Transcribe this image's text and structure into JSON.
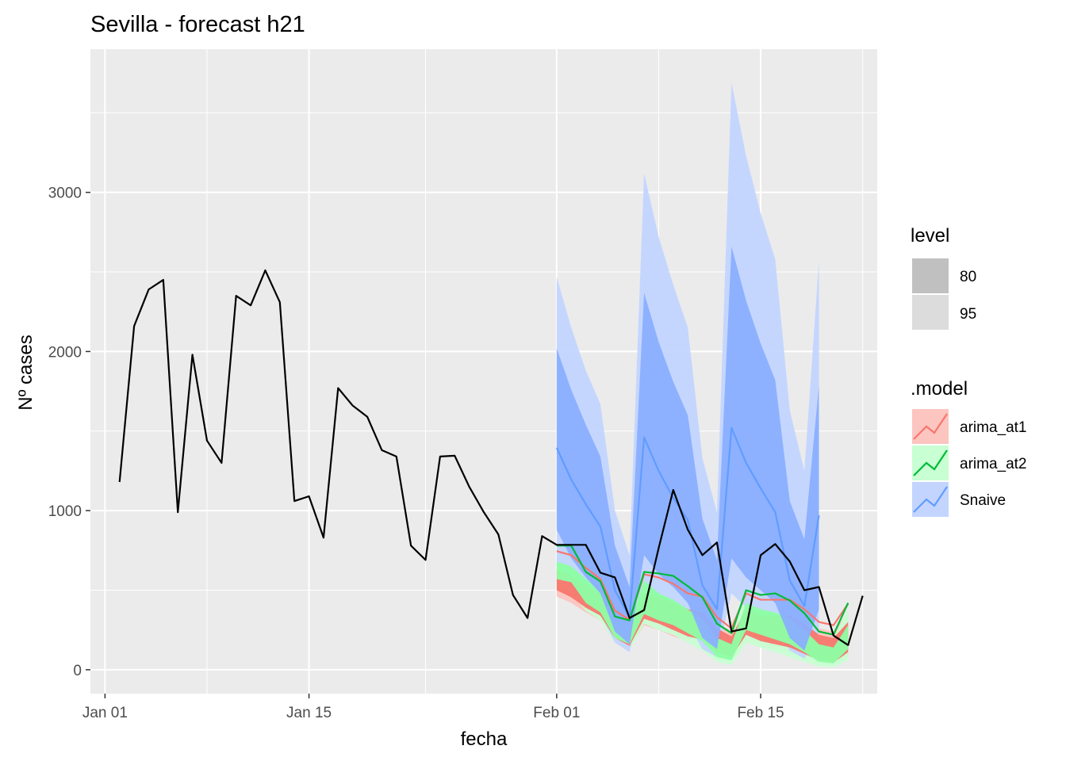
{
  "chart_data": {
    "type": "line",
    "title": "Sevilla - forecast h21",
    "xlabel": "fecha",
    "ylabel": "Nº cases",
    "xlim": [
      "2021-12-31",
      "2022-02-23"
    ],
    "ylim": [
      -150,
      3900
    ],
    "x_ticks": [
      {
        "date": "2022-01-01",
        "label": "Jan 01"
      },
      {
        "date": "2022-01-15",
        "label": "Jan 15"
      },
      {
        "date": "2022-02-01",
        "label": "Feb 01"
      },
      {
        "date": "2022-02-15",
        "label": "Feb 15"
      }
    ],
    "x_minor_ticks": [
      "2022-01-08",
      "2022-01-23",
      "2022-02-08",
      "2022-02-22"
    ],
    "y_ticks": [
      0,
      1000,
      2000,
      3000
    ],
    "y_minor_ticks": [
      500,
      1500,
      2500,
      3500
    ],
    "grid": true,
    "legend_position": "right",
    "legend": {
      "level": {
        "title": "level",
        "items": [
          "80",
          "95"
        ]
      },
      "model": {
        "title": ".model",
        "items": [
          "arima_at1",
          "arima_at2",
          "Snaive"
        ]
      }
    },
    "observed": {
      "start": "2022-01-02",
      "values": [
        1180,
        2160,
        2390,
        2450,
        990,
        1980,
        1440,
        1300,
        2350,
        2290,
        2510,
        2310,
        1060,
        1090,
        830,
        1770,
        1660,
        1590,
        1380,
        1340,
        780,
        690,
        1340,
        1345,
        1150,
        990,
        850,
        470,
        325,
        840,
        785,
        785,
        785,
        610,
        580,
        325,
        375,
        765,
        1130,
        880,
        720,
        800,
        240,
        260,
        720,
        790,
        680,
        500,
        520,
        215,
        155,
        465
      ]
    },
    "forecast": {
      "start": "2022-02-01",
      "series": [
        {
          "name": "arima_at1",
          "color": "#F8766D",
          "fill80": "#F8766D",
          "fill95": "#FCC5C0",
          "mean": [
            745,
            720,
            640,
            570,
            370,
            315,
            600,
            580,
            540,
            480,
            460,
            330,
            260,
            480,
            440,
            440,
            440,
            380,
            300,
            280,
            415
          ],
          "lo80": [
            500,
            455,
            390,
            340,
            200,
            150,
            320,
            290,
            250,
            210,
            190,
            110,
            80,
            220,
            180,
            160,
            140,
            100,
            60,
            45,
            110
          ],
          "hi80": [
            630,
            590,
            530,
            480,
            300,
            250,
            480,
            460,
            420,
            380,
            360,
            260,
            210,
            380,
            340,
            340,
            340,
            290,
            220,
            200,
            300
          ],
          "lo95": [
            460,
            420,
            360,
            310,
            180,
            130,
            280,
            250,
            210,
            180,
            160,
            90,
            60,
            180,
            150,
            130,
            110,
            80,
            50,
            35,
            80
          ],
          "hi95": [
            700,
            660,
            590,
            530,
            340,
            290,
            540,
            520,
            480,
            430,
            410,
            300,
            240,
            430,
            390,
            390,
            390,
            330,
            260,
            240,
            360
          ]
        },
        {
          "name": "arima_at2",
          "color": "#00BA38",
          "fill80": "#8CFFA3",
          "fill95": "#C8FFD3",
          "mean": [
            780,
            780,
            615,
            555,
            335,
            310,
            615,
            605,
            590,
            525,
            455,
            290,
            230,
            500,
            470,
            480,
            435,
            355,
            240,
            220,
            420
          ],
          "lo80": [
            570,
            550,
            420,
            360,
            200,
            160,
            350,
            310,
            280,
            230,
            180,
            80,
            60,
            250,
            220,
            190,
            160,
            110,
            50,
            40,
            130
          ],
          "hi80": [
            680,
            650,
            570,
            500,
            320,
            280,
            560,
            480,
            440,
            380,
            320,
            200,
            160,
            420,
            380,
            360,
            320,
            250,
            160,
            140,
            280
          ],
          "lo95": [
            520,
            480,
            370,
            310,
            170,
            120,
            290,
            250,
            220,
            170,
            120,
            50,
            30,
            170,
            140,
            110,
            80,
            50,
            20,
            15,
            60
          ],
          "hi95": [
            740,
            720,
            620,
            560,
            360,
            320,
            620,
            560,
            520,
            450,
            380,
            250,
            200,
            480,
            440,
            430,
            400,
            330,
            220,
            200,
            380
          ]
        },
        {
          "name": "Snaive",
          "color": "#619CFF",
          "fill80": "#8AAFFF",
          "fill95": "#C3D5FF",
          "mean": [
            1395,
            1195,
            1040,
            900,
            500,
            330,
            1460,
            1250,
            1080,
            940,
            530,
            380,
            1520,
            1300,
            1140,
            990,
            560,
            400,
            970
          ],
          "mean_start": "2022-02-01",
          "lo80": [
            880,
            700,
            580,
            480,
            240,
            160,
            720,
            600,
            520,
            420,
            200,
            130,
            700,
            580,
            500,
            420,
            200,
            120,
            380
          ],
          "hi80": [
            2020,
            1760,
            1540,
            1340,
            780,
            520,
            2370,
            2060,
            1810,
            1600,
            950,
            690,
            2660,
            2320,
            2050,
            1820,
            1060,
            820,
            1790
          ],
          "lo95": [
            660,
            520,
            430,
            350,
            170,
            110,
            520,
            430,
            360,
            290,
            130,
            80,
            480,
            390,
            330,
            270,
            120,
            70,
            230
          ],
          "hi95": [
            2470,
            2150,
            1880,
            1670,
            1000,
            720,
            3120,
            2720,
            2420,
            2150,
            1330,
            990,
            3690,
            3230,
            2870,
            2580,
            1630,
            1250,
            2570
          ]
        }
      ]
    }
  }
}
